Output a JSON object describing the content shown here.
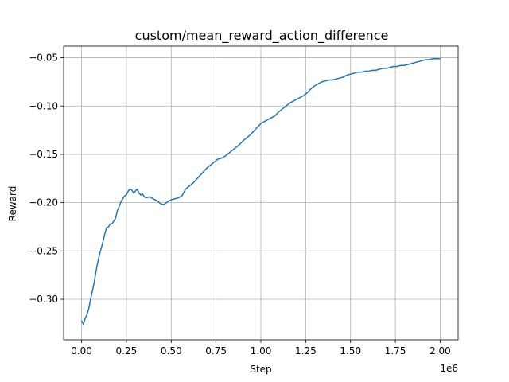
{
  "chart_data": {
    "type": "line",
    "title": "custom/mean_reward_action_difference",
    "xlabel": "Step",
    "ylabel": "Reward",
    "x_offset_label": "1e6",
    "xlim": [
      -0.1,
      2.1
    ],
    "ylim": [
      -0.342,
      -0.038
    ],
    "grid": true,
    "legend": "none",
    "x_ticks": [
      {
        "value": 0.0,
        "label": "0.00"
      },
      {
        "value": 0.25,
        "label": "0.25"
      },
      {
        "value": 0.5,
        "label": "0.50"
      },
      {
        "value": 0.75,
        "label": "0.75"
      },
      {
        "value": 1.0,
        "label": "1.00"
      },
      {
        "value": 1.25,
        "label": "1.25"
      },
      {
        "value": 1.5,
        "label": "1.50"
      },
      {
        "value": 1.75,
        "label": "1.75"
      },
      {
        "value": 2.0,
        "label": "2.00"
      }
    ],
    "y_ticks": [
      {
        "value": -0.3,
        "label": "−0.30"
      },
      {
        "value": -0.25,
        "label": "−0.25"
      },
      {
        "value": -0.2,
        "label": "−0.20"
      },
      {
        "value": -0.15,
        "label": "−0.15"
      },
      {
        "value": -0.1,
        "label": "−0.10"
      },
      {
        "value": -0.05,
        "label": "−0.05"
      }
    ],
    "series": [
      {
        "color": "#1f77b4",
        "x": [
          0.0,
          0.01,
          0.02,
          0.03,
          0.04,
          0.05,
          0.06,
          0.07,
          0.08,
          0.09,
          0.1,
          0.11,
          0.12,
          0.13,
          0.14,
          0.15,
          0.16,
          0.17,
          0.18,
          0.19,
          0.2,
          0.21,
          0.22,
          0.23,
          0.24,
          0.25,
          0.26,
          0.27,
          0.28,
          0.29,
          0.3,
          0.31,
          0.32,
          0.33,
          0.34,
          0.35,
          0.36,
          0.38,
          0.4,
          0.42,
          0.44,
          0.46,
          0.48,
          0.5,
          0.52,
          0.54,
          0.56,
          0.58,
          0.6,
          0.62,
          0.64,
          0.66,
          0.68,
          0.7,
          0.72,
          0.74,
          0.76,
          0.78,
          0.8,
          0.82,
          0.84,
          0.86,
          0.88,
          0.9,
          0.92,
          0.94,
          0.96,
          0.98,
          1.0,
          1.02,
          1.04,
          1.06,
          1.08,
          1.1,
          1.12,
          1.14,
          1.16,
          1.18,
          1.2,
          1.22,
          1.24,
          1.26,
          1.28,
          1.3,
          1.32,
          1.34,
          1.36,
          1.38,
          1.4,
          1.42,
          1.44,
          1.46,
          1.48,
          1.5,
          1.52,
          1.54,
          1.56,
          1.58,
          1.6,
          1.62,
          1.64,
          1.66,
          1.68,
          1.7,
          1.72,
          1.74,
          1.76,
          1.78,
          1.8,
          1.82,
          1.84,
          1.86,
          1.88,
          1.9,
          1.92,
          1.94,
          1.96,
          1.98,
          2.0
        ],
        "y": [
          -0.322,
          -0.326,
          -0.32,
          -0.316,
          -0.31,
          -0.3,
          -0.292,
          -0.283,
          -0.272,
          -0.262,
          -0.254,
          -0.247,
          -0.24,
          -0.232,
          -0.226,
          -0.225,
          -0.222,
          -0.222,
          -0.219,
          -0.216,
          -0.208,
          -0.204,
          -0.199,
          -0.196,
          -0.193,
          -0.192,
          -0.188,
          -0.186,
          -0.187,
          -0.19,
          -0.188,
          -0.186,
          -0.19,
          -0.192,
          -0.191,
          -0.194,
          -0.195,
          -0.194,
          -0.196,
          -0.198,
          -0.201,
          -0.202,
          -0.199,
          -0.197,
          -0.196,
          -0.195,
          -0.193,
          -0.186,
          -0.183,
          -0.18,
          -0.176,
          -0.172,
          -0.168,
          -0.164,
          -0.161,
          -0.158,
          -0.155,
          -0.154,
          -0.152,
          -0.149,
          -0.146,
          -0.143,
          -0.14,
          -0.136,
          -0.133,
          -0.13,
          -0.126,
          -0.122,
          -0.118,
          -0.116,
          -0.114,
          -0.112,
          -0.11,
          -0.106,
          -0.103,
          -0.1,
          -0.097,
          -0.095,
          -0.093,
          -0.091,
          -0.089,
          -0.086,
          -0.082,
          -0.079,
          -0.077,
          -0.075,
          -0.074,
          -0.073,
          -0.073,
          -0.072,
          -0.071,
          -0.07,
          -0.068,
          -0.067,
          -0.066,
          -0.065,
          -0.065,
          -0.064,
          -0.064,
          -0.063,
          -0.063,
          -0.062,
          -0.061,
          -0.061,
          -0.06,
          -0.059,
          -0.059,
          -0.058,
          -0.058,
          -0.057,
          -0.056,
          -0.055,
          -0.054,
          -0.053,
          -0.052,
          -0.052,
          -0.051,
          -0.051,
          -0.051
        ]
      }
    ]
  }
}
